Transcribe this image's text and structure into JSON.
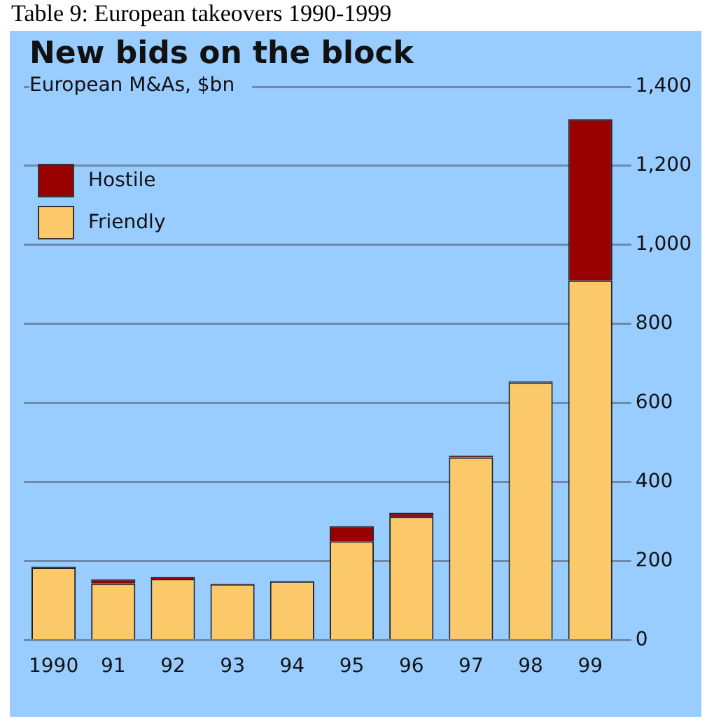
{
  "chart_data": {
    "type": "bar",
    "title": "New bids on the block",
    "subtitle": "European M&As, $bn",
    "annotations": [
      "Table 9: European takeovers 1990-1999"
    ],
    "categories": [
      "1990",
      "91",
      "92",
      "93",
      "94",
      "95",
      "96",
      "97",
      "98",
      "99"
    ],
    "series": [
      {
        "name": "Friendly",
        "color": "#fcc96a",
        "values": [
          183,
          143,
          155,
          141,
          148,
          250,
          312,
          462,
          652,
          910
        ]
      },
      {
        "name": "Hostile",
        "color": "#990000",
        "values": [
          3,
          11,
          5,
          2,
          2,
          38,
          10,
          5,
          3,
          408
        ]
      }
    ],
    "stacked": true,
    "ylim": [
      0,
      1400
    ],
    "yticks": [
      {
        "value": 0,
        "label": "0"
      },
      {
        "value": 200,
        "label": "200"
      },
      {
        "value": 400,
        "label": "400"
      },
      {
        "value": 600,
        "label": "600"
      },
      {
        "value": 800,
        "label": "800"
      },
      {
        "value": 1000,
        "label": "1,000"
      },
      {
        "value": 1200,
        "label": "1,200"
      },
      {
        "value": 1400,
        "label": "1,400"
      }
    ],
    "grid": "y",
    "legend": "top left"
  }
}
